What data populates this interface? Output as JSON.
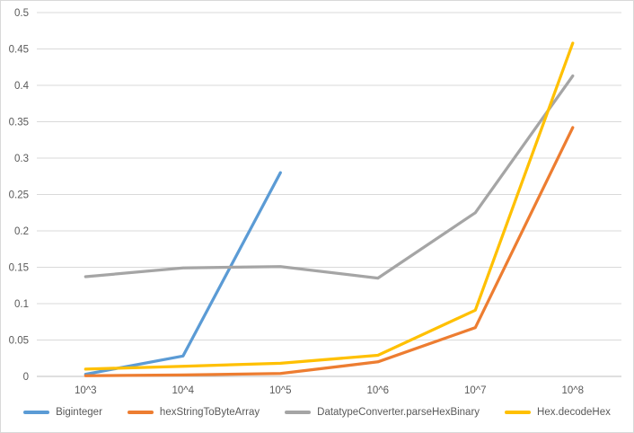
{
  "chart_data": {
    "type": "line",
    "title": "",
    "xlabel": "",
    "ylabel": "",
    "categories": [
      "10^3",
      "10^4",
      "10^5",
      "10^6",
      "10^7",
      "10^8"
    ],
    "series": [
      {
        "name": "Biginteger",
        "color": "#5B9BD5",
        "values": [
          0.003,
          0.028,
          0.28,
          null,
          null,
          null
        ]
      },
      {
        "name": "hexStringToByteArray",
        "color": "#ED7D31",
        "values": [
          0.001,
          0.002,
          0.004,
          0.02,
          0.067,
          0.342
        ]
      },
      {
        "name": "DatatypeConverter.parseHexBinary",
        "color": "#A5A5A5",
        "values": [
          0.137,
          0.149,
          0.151,
          0.135,
          0.225,
          0.413
        ]
      },
      {
        "name": "Hex.decodeHex",
        "color": "#FFC000",
        "values": [
          0.01,
          0.014,
          0.018,
          0.029,
          0.091,
          0.458
        ]
      }
    ],
    "ylim": [
      0,
      0.5
    ],
    "yticks": [
      "0",
      "0.05",
      "0.1",
      "0.15",
      "0.2",
      "0.25",
      "0.3",
      "0.35",
      "0.4",
      "0.45",
      "0.5"
    ],
    "grid": true,
    "legend_position": "bottom"
  },
  "styles": {
    "grid_color": "#d9d9d9",
    "axis_color": "#bfbfbf",
    "text_color": "#595959",
    "background": "#ffffff",
    "border_color": "#d9d9d9",
    "line_width": 3.25
  }
}
